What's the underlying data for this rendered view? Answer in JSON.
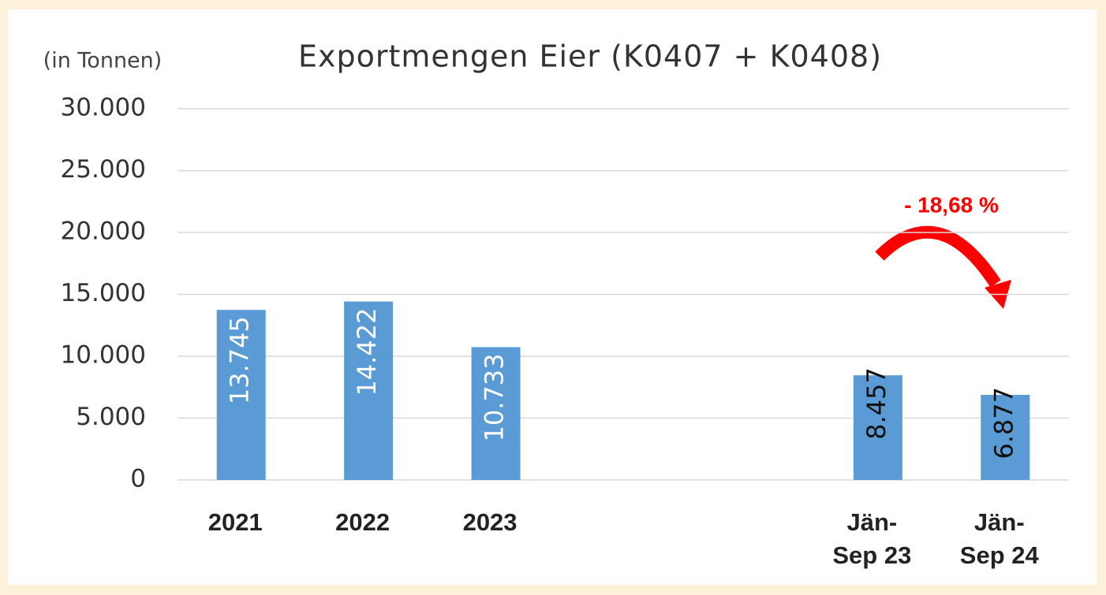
{
  "chart_data": {
    "type": "bar",
    "title": "Exportmengen Eier (K0407 + K0408)",
    "unit_label": "(in Tonnen)",
    "annotation": "- 18,68 %",
    "categories": [
      "2021",
      "2022",
      "2023",
      null,
      null,
      "Jän-Sep 23",
      "Jän-Sep 24"
    ],
    "values": [
      13745,
      14422,
      10733,
      null,
      null,
      8457,
      6877
    ],
    "value_labels": [
      "13.745",
      "14.422",
      "10.733",
      null,
      null,
      "8.457",
      "6.877"
    ],
    "color": "#5b9bd5",
    "ylim": [
      0,
      30000
    ],
    "yticks": [
      0,
      {
        "value": 5000,
        "label": "5.000"
      },
      {
        "value": 10000,
        "label": "10.000"
      },
      {
        "value": 15000,
        "label": "15.000"
      },
      {
        "value": 20000,
        "label": "20.000"
      },
      {
        "value": 25000,
        "label": "25.000"
      },
      {
        "value": 30000,
        "label": "30.000"
      }
    ],
    "grid": true
  }
}
